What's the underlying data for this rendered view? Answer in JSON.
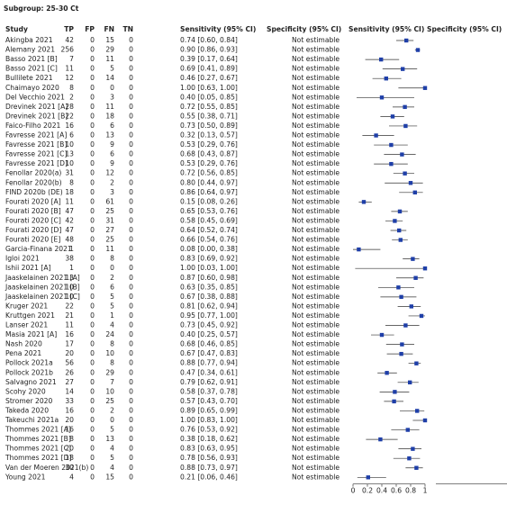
{
  "chart_data": {
    "type": "forest",
    "title": "Subgroup: 25-30 Ct",
    "headers": [
      "Study",
      "TP",
      "FP",
      "FN",
      "TN",
      "Sensitivity (95% CI)",
      "Specificity (95% CI)",
      "Sensitivity (95% CI)",
      "Specificity (95% CI)"
    ],
    "studies": [
      "Akingba 2021",
      "Alemany 2021",
      "Basso 2021 [B]",
      "Basso 2021 [C]",
      "Bullilete 2021",
      "Chaimayo 2020",
      "Del Vecchio 2021",
      "Drevinek 2021 [A]",
      "Drevinek 2021 [B]",
      "Faico-Filho 2021",
      "Favresse 2021 [A]",
      "Favresse 2021 [B]",
      "Favresse 2021 [C]",
      "Favresse 2021 [D]",
      "Fenollar 2020(a)",
      "Fenollar 2020(b)",
      "FIND 2020b (DE)",
      "Fourati 2020 [A]",
      "Fourati 2020 [B]",
      "Fourati 2020 [C]",
      "Fourati 2020 [D]",
      "Fourati 2020 [E]",
      "Garcia-Finana 2021",
      "Igloi 2021",
      "Ishii 2021 [A]",
      "Jaaskelainen 2021 [A]",
      "Jaaskelainen 2021 [B]",
      "Jaaskelainen 2021 [C]",
      "Kruger 2021",
      "Kruttgen 2021",
      "Lanser 2021",
      "Masia 2021 [A]",
      "Nash 2020",
      "Pena 2021",
      "Pollock 2021a",
      "Pollock 2021b",
      "Salvagno 2021",
      "Scohy 2020",
      "Stromer 2020",
      "Takeda 2020",
      "Takeuchi 2021a",
      "Thommes 2021 [A]",
      "Thommes 2021 [B]",
      "Thommes 2021 [C]",
      "Thommes 2021 [D]",
      "Van der Moeren 2021(b)",
      "Young 2021"
    ],
    "tp": [
      42,
      256,
      7,
      11,
      12,
      8,
      2,
      28,
      22,
      16,
      6,
      10,
      13,
      10,
      31,
      8,
      18,
      11,
      47,
      42,
      47,
      48,
      1,
      38,
      1,
      13,
      10,
      10,
      22,
      21,
      11,
      16,
      17,
      20,
      56,
      26,
      27,
      14,
      33,
      16,
      20,
      16,
      8,
      20,
      18,
      30,
      4
    ],
    "fp": [
      0,
      0,
      0,
      0,
      0,
      0,
      0,
      0,
      0,
      0,
      0,
      0,
      0,
      0,
      0,
      0,
      0,
      0,
      0,
      0,
      0,
      0,
      0,
      0,
      0,
      0,
      0,
      0,
      0,
      0,
      0,
      0,
      0,
      0,
      0,
      0,
      0,
      0,
      0,
      0,
      0,
      0,
      0,
      0,
      0,
      0,
      0
    ],
    "fn": [
      15,
      29,
      11,
      5,
      14,
      0,
      3,
      11,
      18,
      6,
      13,
      9,
      6,
      9,
      12,
      2,
      3,
      61,
      25,
      31,
      27,
      25,
      11,
      8,
      0,
      2,
      6,
      5,
      5,
      1,
      4,
      24,
      8,
      10,
      8,
      29,
      7,
      10,
      25,
      2,
      0,
      5,
      13,
      4,
      5,
      4,
      15
    ],
    "tn": [
      0,
      0,
      0,
      0,
      0,
      0,
      0,
      0,
      0,
      0,
      0,
      0,
      0,
      0,
      0,
      0,
      0,
      0,
      0,
      0,
      0,
      0,
      0,
      0,
      0,
      0,
      0,
      0,
      0,
      0,
      0,
      0,
      0,
      0,
      0,
      0,
      0,
      0,
      0,
      0,
      0,
      0,
      0,
      0,
      0,
      0,
      0
    ],
    "sensitivity": [
      0.74,
      0.9,
      0.39,
      0.69,
      0.46,
      1,
      0.4,
      0.72,
      0.55,
      0.73,
      0.32,
      0.53,
      0.68,
      0.53,
      0.72,
      0.8,
      0.86,
      0.15,
      0.65,
      0.58,
      0.64,
      0.66,
      0.08,
      0.83,
      1,
      0.87,
      0.63,
      0.67,
      0.81,
      0.95,
      0.73,
      0.4,
      0.68,
      0.67,
      0.88,
      0.47,
      0.79,
      0.58,
      0.57,
      0.89,
      1,
      0.76,
      0.38,
      0.83,
      0.78,
      0.88,
      0.21
    ],
    "ci_lower": [
      0.6,
      0.86,
      0.17,
      0.41,
      0.27,
      0.63,
      0.05,
      0.55,
      0.38,
      0.5,
      0.13,
      0.29,
      0.43,
      0.29,
      0.56,
      0.44,
      0.64,
      0.08,
      0.53,
      0.45,
      0.52,
      0.54,
      0,
      0.69,
      0.03,
      0.6,
      0.35,
      0.38,
      0.62,
      0.77,
      0.45,
      0.25,
      0.46,
      0.47,
      0.77,
      0.34,
      0.62,
      0.37,
      0.43,
      0.65,
      0.83,
      0.53,
      0.18,
      0.63,
      0.56,
      0.73,
      0.06
    ],
    "ci_upper": [
      0.84,
      0.93,
      0.64,
      0.89,
      0.67,
      1,
      0.85,
      0.85,
      0.71,
      0.89,
      0.57,
      0.76,
      0.87,
      0.76,
      0.85,
      0.97,
      0.97,
      0.26,
      0.76,
      0.69,
      0.74,
      0.76,
      0.38,
      0.92,
      1,
      0.98,
      0.85,
      0.88,
      0.94,
      1,
      0.92,
      0.57,
      0.85,
      0.83,
      0.94,
      0.61,
      0.91,
      0.78,
      0.7,
      0.99,
      1,
      0.92,
      0.62,
      0.95,
      0.93,
      0.97,
      0.46
    ],
    "sensitivity_labels": [
      "0.74 [0.60, 0.84]",
      "0.90 [0.86, 0.93]",
      "0.39 [0.17, 0.64]",
      "0.69 [0.41, 0.89]",
      "0.46 [0.27, 0.67]",
      "1.00 [0.63, 1.00]",
      "0.40 [0.05, 0.85]",
      "0.72 [0.55, 0.85]",
      "0.55 [0.38, 0.71]",
      "0.73 [0.50, 0.89]",
      "0.32 [0.13, 0.57]",
      "0.53 [0.29, 0.76]",
      "0.68 [0.43, 0.87]",
      "0.53 [0.29, 0.76]",
      "0.72 [0.56, 0.85]",
      "0.80 [0.44, 0.97]",
      "0.86 [0.64, 0.97]",
      "0.15 [0.08, 0.26]",
      "0.65 [0.53, 0.76]",
      "0.58 [0.45, 0.69]",
      "0.64 [0.52, 0.74]",
      "0.66 [0.54, 0.76]",
      "0.08 [0.00, 0.38]",
      "0.83 [0.69, 0.92]",
      "1.00 [0.03, 1.00]",
      "0.87 [0.60, 0.98]",
      "0.63 [0.35, 0.85]",
      "0.67 [0.38, 0.88]",
      "0.81 [0.62, 0.94]",
      "0.95 [0.77, 1.00]",
      "0.73 [0.45, 0.92]",
      "0.40 [0.25, 0.57]",
      "0.68 [0.46, 0.85]",
      "0.67 [0.47, 0.83]",
      "0.88 [0.77, 0.94]",
      "0.47 [0.34, 0.61]",
      "0.79 [0.62, 0.91]",
      "0.58 [0.37, 0.78]",
      "0.57 [0.43, 0.70]",
      "0.89 [0.65, 0.99]",
      "1.00 [0.83, 1.00]",
      "0.76 [0.53, 0.92]",
      "0.38 [0.18, 0.62]",
      "0.83 [0.63, 0.95]",
      "0.78 [0.56, 0.93]",
      "0.88 [0.73, 0.97]",
      "0.21 [0.06, 0.46]"
    ],
    "specificity_text": "Not estimable",
    "color": "#1f3fa8",
    "xlim": [
      0,
      1
    ],
    "xticks": [
      0,
      0.2,
      0.4,
      0.6,
      0.8,
      1
    ]
  }
}
